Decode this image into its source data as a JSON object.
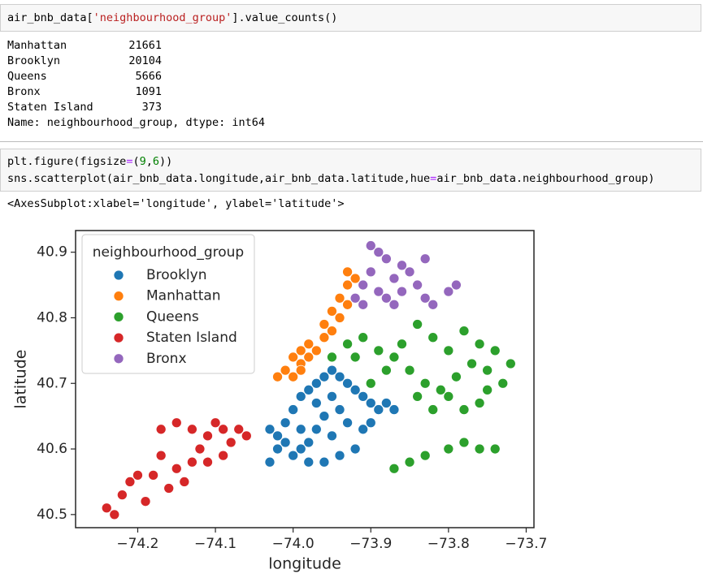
{
  "cells": [
    {
      "code": [
        "air_bnb_data['neighbourhood_group'].value_counts()"
      ],
      "output": {
        "rows": [
          [
            "Manhattan",
            21661
          ],
          [
            "Brooklyn",
            20104
          ],
          [
            "Queens",
            5666
          ],
          [
            "Bronx",
            1091
          ],
          [
            "Staten Island",
            373
          ]
        ],
        "footer": "Name: neighbourhood_group, dtype: int64"
      }
    },
    {
      "code": [
        "plt.figure(figsize=(9,6))",
        "sns.scatterplot(air_bnb_data.longitude,air_bnb_data.latitude,hue=air_bnb_data.neighbourhood_group)"
      ],
      "output": {
        "repr": "<AxesSubplot:xlabel='longitude', ylabel='latitude'>"
      }
    }
  ],
  "chart_data": {
    "type": "scatter",
    "x_label": "longitude",
    "y_label": "latitude",
    "legend_title": "neighbourhood_group",
    "legend": "upper left",
    "xlim": [
      -74.28,
      -73.69
    ],
    "ylim": [
      40.48,
      40.933
    ],
    "xticks": [
      {
        "value": -74.2,
        "label": "−74.2"
      },
      {
        "value": -74.1,
        "label": "−74.1"
      },
      {
        "value": -74.0,
        "label": "−74.0"
      },
      {
        "value": -73.9,
        "label": "−73.9"
      },
      {
        "value": -73.8,
        "label": "−73.8"
      },
      {
        "value": -73.7,
        "label": "−73.7"
      }
    ],
    "yticks": [
      40.5,
      40.6,
      40.7,
      40.8,
      40.9
    ],
    "series": [
      {
        "name": "Brooklyn",
        "color": "#1f77b4",
        "x": [
          -74.03,
          -74.02,
          -74.01,
          -74.0,
          -73.99,
          -73.98,
          -73.97,
          -73.96,
          -73.95,
          -73.94,
          -73.93,
          -73.92,
          -73.91,
          -73.9,
          -73.89,
          -73.88,
          -73.87,
          -73.95,
          -73.96,
          -73.97,
          -73.98,
          -73.99,
          -74.0,
          -73.98,
          -73.96,
          -73.94,
          -73.92,
          -73.91,
          -73.93,
          -73.95,
          -74.01,
          -74.02,
          -73.99,
          -73.94,
          -73.9,
          -73.97,
          -74.03
        ],
        "y": [
          40.63,
          40.62,
          40.64,
          40.66,
          40.68,
          40.69,
          40.7,
          40.71,
          40.72,
          40.71,
          40.7,
          40.69,
          40.68,
          40.67,
          40.66,
          40.67,
          40.66,
          40.68,
          40.65,
          40.63,
          40.61,
          40.6,
          40.59,
          40.58,
          40.58,
          40.59,
          40.6,
          40.63,
          40.64,
          40.62,
          40.61,
          40.6,
          40.63,
          40.66,
          40.64,
          40.67,
          40.58
        ]
      },
      {
        "name": "Manhattan",
        "color": "#ff7f0e",
        "x": [
          -74.02,
          -74.01,
          -74.0,
          -73.99,
          -73.99,
          -73.98,
          -73.97,
          -73.98,
          -73.96,
          -73.95,
          -73.96,
          -73.94,
          -73.95,
          -73.93,
          -73.94,
          -73.93,
          -73.92,
          -73.93,
          -74.0,
          -73.99
        ],
        "y": [
          40.71,
          40.72,
          40.74,
          40.73,
          40.75,
          40.76,
          40.75,
          40.74,
          40.77,
          40.78,
          40.79,
          40.8,
          40.81,
          40.82,
          40.83,
          40.85,
          40.86,
          40.87,
          40.71,
          40.72
        ]
      },
      {
        "name": "Queens",
        "color": "#2ca02c",
        "x": [
          -73.95,
          -73.93,
          -73.91,
          -73.89,
          -73.87,
          -73.85,
          -73.83,
          -73.81,
          -73.79,
          -73.77,
          -73.75,
          -73.74,
          -73.73,
          -73.72,
          -73.76,
          -73.78,
          -73.8,
          -73.86,
          -73.84,
          -73.82,
          -73.8,
          -73.78,
          -73.76,
          -73.88,
          -73.9,
          -73.84,
          -73.82,
          -73.87,
          -73.85,
          -73.83,
          -73.8,
          -73.78,
          -73.76,
          -73.74,
          -73.92,
          -73.75
        ],
        "y": [
          40.74,
          40.76,
          40.77,
          40.75,
          40.74,
          40.72,
          40.7,
          40.69,
          40.71,
          40.73,
          40.72,
          40.75,
          40.7,
          40.73,
          40.67,
          40.66,
          40.68,
          40.76,
          40.79,
          40.77,
          40.75,
          40.78,
          40.76,
          40.72,
          40.7,
          40.68,
          40.66,
          40.57,
          40.58,
          40.59,
          40.6,
          40.61,
          40.6,
          40.6,
          40.74,
          40.69
        ]
      },
      {
        "name": "Staten Island",
        "color": "#d62728",
        "x": [
          -74.24,
          -74.23,
          -74.22,
          -74.21,
          -74.19,
          -74.18,
          -74.17,
          -74.16,
          -74.15,
          -74.14,
          -74.13,
          -74.12,
          -74.11,
          -74.1,
          -74.09,
          -74.08,
          -74.07,
          -74.06,
          -74.09,
          -74.11,
          -74.17,
          -74.15,
          -74.13,
          -74.2
        ],
        "y": [
          40.51,
          40.5,
          40.53,
          40.55,
          40.52,
          40.56,
          40.59,
          40.54,
          40.57,
          40.55,
          40.58,
          40.6,
          40.62,
          40.64,
          40.63,
          40.61,
          40.63,
          40.62,
          40.59,
          40.58,
          40.63,
          40.64,
          40.63,
          40.56
        ]
      },
      {
        "name": "Bronx",
        "color": "#9467bd",
        "x": [
          -73.92,
          -73.91,
          -73.9,
          -73.89,
          -73.88,
          -73.87,
          -73.86,
          -73.85,
          -73.84,
          -73.83,
          -73.82,
          -73.83,
          -73.9,
          -73.89,
          -73.87,
          -73.86,
          -73.79,
          -73.8,
          -73.91,
          -73.88
        ],
        "y": [
          40.83,
          40.85,
          40.87,
          40.84,
          40.83,
          40.86,
          40.88,
          40.87,
          40.85,
          40.83,
          40.82,
          40.89,
          40.91,
          40.9,
          40.82,
          40.84,
          40.85,
          40.84,
          40.82,
          40.89
        ]
      }
    ]
  }
}
